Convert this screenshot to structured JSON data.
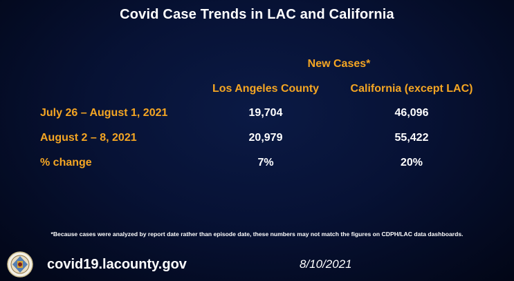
{
  "title": "Covid Case Trends in LAC and California",
  "table": {
    "group_header": "New Cases*",
    "columns": [
      "Los Angeles County",
      "California (except LAC)"
    ],
    "rows": [
      {
        "label": "July 26 – August 1, 2021",
        "lac": "19,704",
        "ca": "46,096"
      },
      {
        "label": "August 2 – 8, 2021",
        "lac": "20,979",
        "ca": "55,422"
      },
      {
        "label": "% change",
        "lac": "7%",
        "ca": "20%"
      }
    ]
  },
  "footnote": "*Because cases were analyzed by report date rather than episode date, these numbers may not match the figures on CDPH/LAC data dashboards.",
  "footer": {
    "url": "covid19.lacounty.gov",
    "date": "8/10/2021",
    "seal_icon": "county-seal-icon"
  },
  "colors": {
    "accent": "#f5a623",
    "background": "#071235",
    "text": "#ffffff"
  }
}
